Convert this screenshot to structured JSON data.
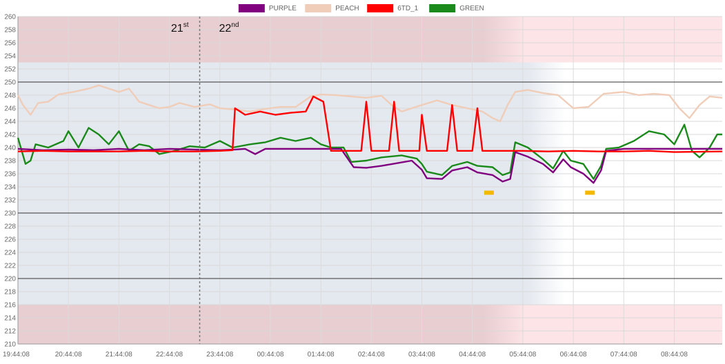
{
  "chart_data": {
    "type": "line",
    "x_tick_labels": [
      "19:44:08",
      "20:44:08",
      "21:44:08",
      "22:44:08",
      "23:44:08",
      "00:44:08",
      "01:44:08",
      "02:44:08",
      "03:44:08",
      "04:44:08",
      "05:44:08",
      "06:44:08",
      "07:44:08",
      "08:44:08"
    ],
    "y_ticks": [
      210,
      212,
      214,
      216,
      218,
      220,
      222,
      224,
      226,
      228,
      230,
      232,
      234,
      236,
      238,
      240,
      242,
      244,
      246,
      248,
      250,
      252,
      254,
      256,
      258,
      260
    ],
    "ylim": [
      210,
      260
    ],
    "xlim_hours": [
      0,
      13.95
    ],
    "grid": true,
    "legend_position": "top-center",
    "day_marker": {
      "x_hour": 3.6,
      "left_label": {
        "main": "21",
        "sup": "st"
      },
      "right_label": {
        "main": "22",
        "sup": "nd"
      }
    },
    "bands": [
      {
        "from": 253,
        "to": 260,
        "color": "#e8c8cc"
      },
      {
        "from": 210,
        "to": 216,
        "color": "#e8c8cc"
      },
      {
        "from": 216,
        "to": 253,
        "color": "#e4e8ef",
        "x_end_hour": 10.3
      }
    ],
    "threshold_lines": [
      250,
      230,
      220
    ],
    "markers": [
      {
        "x_hour": 9.33,
        "y": 233,
        "color": "#f5b800"
      },
      {
        "x_hour": 11.33,
        "y": 233,
        "color": "#f5b800"
      }
    ],
    "series": [
      {
        "name": "PURPLE",
        "color": "#800080",
        "points": [
          [
            0,
            239.8
          ],
          [
            0.5,
            239.6
          ],
          [
            1,
            239.7
          ],
          [
            1.5,
            239.6
          ],
          [
            2,
            239.8
          ],
          [
            2.5,
            239.6
          ],
          [
            3,
            239.8
          ],
          [
            3.5,
            239.7
          ],
          [
            4,
            239.6
          ],
          [
            4.3,
            239.7
          ],
          [
            4.5,
            239.8
          ],
          [
            4.7,
            239.0
          ],
          [
            4.9,
            239.8
          ],
          [
            5.5,
            239.8
          ],
          [
            6,
            239.8
          ],
          [
            6.4,
            239.8
          ],
          [
            6.65,
            237.0
          ],
          [
            6.9,
            236.9
          ],
          [
            7.2,
            237.2
          ],
          [
            7.5,
            237.6
          ],
          [
            7.8,
            238.0
          ],
          [
            8.0,
            236.6
          ],
          [
            8.1,
            235.3
          ],
          [
            8.4,
            235.2
          ],
          [
            8.6,
            236.5
          ],
          [
            8.9,
            237.0
          ],
          [
            9.1,
            236.2
          ],
          [
            9.4,
            235.8
          ],
          [
            9.6,
            234.8
          ],
          [
            9.75,
            235.2
          ],
          [
            9.85,
            239.3
          ],
          [
            10.1,
            238.6
          ],
          [
            10.4,
            237.5
          ],
          [
            10.6,
            236.2
          ],
          [
            10.8,
            238.2
          ],
          [
            10.95,
            237.0
          ],
          [
            11.2,
            236.0
          ],
          [
            11.4,
            234.6
          ],
          [
            11.55,
            236.5
          ],
          [
            11.65,
            239.5
          ],
          [
            12,
            239.8
          ],
          [
            12.5,
            239.8
          ],
          [
            13,
            239.8
          ],
          [
            13.95,
            239.8
          ]
        ]
      },
      {
        "name": "PEACH",
        "color": "#f0cdb8",
        "points": [
          [
            0,
            248.0
          ],
          [
            0.1,
            246.5
          ],
          [
            0.25,
            245.0
          ],
          [
            0.4,
            246.8
          ],
          [
            0.6,
            247.0
          ],
          [
            0.8,
            248.1
          ],
          [
            1.1,
            248.5
          ],
          [
            1.4,
            249.0
          ],
          [
            1.6,
            249.5
          ],
          [
            1.8,
            249.0
          ],
          [
            2.0,
            248.5
          ],
          [
            2.2,
            249.0
          ],
          [
            2.4,
            247.0
          ],
          [
            2.6,
            246.5
          ],
          [
            2.8,
            246.0
          ],
          [
            3.0,
            246.2
          ],
          [
            3.2,
            246.8
          ],
          [
            3.5,
            246.2
          ],
          [
            3.8,
            246.6
          ],
          [
            4.0,
            246.0
          ],
          [
            4.3,
            245.8
          ],
          [
            4.6,
            245.5
          ],
          [
            4.9,
            245.9
          ],
          [
            5.2,
            246.2
          ],
          [
            5.5,
            246.2
          ],
          [
            5.8,
            247.8
          ],
          [
            6.0,
            248.1
          ],
          [
            6.3,
            248.0
          ],
          [
            6.6,
            247.8
          ],
          [
            6.9,
            247.6
          ],
          [
            7.2,
            247.9
          ],
          [
            7.4,
            246.5
          ],
          [
            7.6,
            245.5
          ],
          [
            7.8,
            246.0
          ],
          [
            8.0,
            246.5
          ],
          [
            8.3,
            247.2
          ],
          [
            8.6,
            246.5
          ],
          [
            8.9,
            246.0
          ],
          [
            9.2,
            245.5
          ],
          [
            9.4,
            244.5
          ],
          [
            9.55,
            244.0
          ],
          [
            9.7,
            246.5
          ],
          [
            9.85,
            248.5
          ],
          [
            10.1,
            248.8
          ],
          [
            10.4,
            248.3
          ],
          [
            10.7,
            248.0
          ],
          [
            11.0,
            246.0
          ],
          [
            11.3,
            246.2
          ],
          [
            11.6,
            248.2
          ],
          [
            12.0,
            248.5
          ],
          [
            12.3,
            248.0
          ],
          [
            12.6,
            248.2
          ],
          [
            12.9,
            248.0
          ],
          [
            13.1,
            246.0
          ],
          [
            13.3,
            244.5
          ],
          [
            13.5,
            246.5
          ],
          [
            13.7,
            247.8
          ],
          [
            13.95,
            247.6
          ]
        ]
      },
      {
        "name": "6TD_1",
        "color": "#ff0000",
        "points": [
          [
            0,
            239.4
          ],
          [
            0.5,
            239.5
          ],
          [
            1,
            239.4
          ],
          [
            1.5,
            239.4
          ],
          [
            2,
            239.4
          ],
          [
            2.5,
            239.5
          ],
          [
            3,
            239.4
          ],
          [
            3.5,
            239.4
          ],
          [
            4.0,
            239.5
          ],
          [
            4.25,
            239.6
          ],
          [
            4.3,
            246.0
          ],
          [
            4.5,
            245.0
          ],
          [
            4.8,
            245.5
          ],
          [
            5.1,
            245.0
          ],
          [
            5.4,
            245.3
          ],
          [
            5.7,
            245.5
          ],
          [
            5.85,
            247.8
          ],
          [
            6.05,
            247.0
          ],
          [
            6.2,
            239.5
          ],
          [
            6.8,
            239.5
          ],
          [
            6.9,
            247.0
          ],
          [
            7.0,
            239.5
          ],
          [
            7.35,
            239.5
          ],
          [
            7.45,
            247.0
          ],
          [
            7.55,
            239.5
          ],
          [
            7.95,
            239.5
          ],
          [
            8.0,
            245.0
          ],
          [
            8.1,
            239.5
          ],
          [
            8.5,
            239.5
          ],
          [
            8.6,
            246.5
          ],
          [
            8.7,
            239.5
          ],
          [
            9.0,
            239.5
          ],
          [
            9.1,
            246.0
          ],
          [
            9.2,
            239.5
          ],
          [
            10,
            239.5
          ],
          [
            10.5,
            239.4
          ],
          [
            11,
            239.5
          ],
          [
            11.5,
            239.4
          ],
          [
            12,
            239.4
          ],
          [
            12.5,
            239.5
          ],
          [
            13,
            239.3
          ],
          [
            13.95,
            239.4
          ]
        ]
      },
      {
        "name": "GREEN",
        "color": "#1a8a1a",
        "points": [
          [
            0,
            241.5
          ],
          [
            0.15,
            237.5
          ],
          [
            0.25,
            238.0
          ],
          [
            0.35,
            240.5
          ],
          [
            0.6,
            240.0
          ],
          [
            0.9,
            241.0
          ],
          [
            1.0,
            242.5
          ],
          [
            1.2,
            240.0
          ],
          [
            1.4,
            243.0
          ],
          [
            1.6,
            242.0
          ],
          [
            1.8,
            240.5
          ],
          [
            2.0,
            242.5
          ],
          [
            2.2,
            239.5
          ],
          [
            2.4,
            240.5
          ],
          [
            2.6,
            240.2
          ],
          [
            2.8,
            239.0
          ],
          [
            3.1,
            239.5
          ],
          [
            3.4,
            240.2
          ],
          [
            3.7,
            240.0
          ],
          [
            4.0,
            241.0
          ],
          [
            4.25,
            240.0
          ],
          [
            4.6,
            240.5
          ],
          [
            4.9,
            240.8
          ],
          [
            5.2,
            241.5
          ],
          [
            5.5,
            241.0
          ],
          [
            5.8,
            241.5
          ],
          [
            6.0,
            240.5
          ],
          [
            6.2,
            240.0
          ],
          [
            6.45,
            240.0
          ],
          [
            6.6,
            237.8
          ],
          [
            6.9,
            238.0
          ],
          [
            7.2,
            238.5
          ],
          [
            7.6,
            238.8
          ],
          [
            7.9,
            238.3
          ],
          [
            8.0,
            237.5
          ],
          [
            8.1,
            236.3
          ],
          [
            8.4,
            235.8
          ],
          [
            8.6,
            237.2
          ],
          [
            8.9,
            237.8
          ],
          [
            9.1,
            237.2
          ],
          [
            9.4,
            237.0
          ],
          [
            9.6,
            235.8
          ],
          [
            9.75,
            236.2
          ],
          [
            9.85,
            240.8
          ],
          [
            10.1,
            240.0
          ],
          [
            10.4,
            238.2
          ],
          [
            10.6,
            236.8
          ],
          [
            10.8,
            239.5
          ],
          [
            10.95,
            238.0
          ],
          [
            11.2,
            237.5
          ],
          [
            11.4,
            235.2
          ],
          [
            11.55,
            237.2
          ],
          [
            11.65,
            239.8
          ],
          [
            11.9,
            240.0
          ],
          [
            12.2,
            241.0
          ],
          [
            12.5,
            242.5
          ],
          [
            12.8,
            242.0
          ],
          [
            13.0,
            240.5
          ],
          [
            13.2,
            243.5
          ],
          [
            13.35,
            239.5
          ],
          [
            13.5,
            238.5
          ],
          [
            13.7,
            240.0
          ],
          [
            13.85,
            242.0
          ],
          [
            13.95,
            242.0
          ]
        ]
      }
    ]
  }
}
